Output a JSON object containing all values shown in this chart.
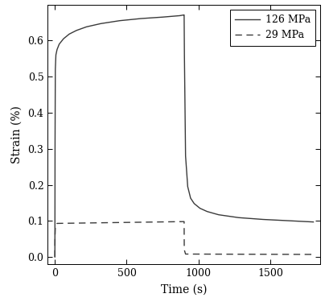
{
  "title": "",
  "xlabel": "Time (s)",
  "ylabel": "Strain (%)",
  "xlim": [
    -50,
    1850
  ],
  "ylim": [
    -0.02,
    0.7
  ],
  "xticks": [
    0,
    500,
    1000,
    1500
  ],
  "yticks": [
    0.0,
    0.1,
    0.2,
    0.3,
    0.4,
    0.5,
    0.6
  ],
  "legend_labels": [
    "126 MPa",
    "29 MPa"
  ],
  "line_color": "#4d4d4d",
  "background_color": "#ffffff",
  "line1": {
    "label": "126 MPa",
    "color": "#3a3a3a",
    "linestyle": "solid",
    "linewidth": 1.0,
    "t_points": [
      0,
      1,
      3,
      7,
      15,
      30,
      60,
      100,
      150,
      220,
      320,
      450,
      600,
      750,
      870,
      899,
      900,
      902,
      910,
      925,
      945,
      970,
      1010,
      1060,
      1140,
      1280,
      1450,
      1650,
      1800
    ],
    "y_points": [
      0.0,
      0.3,
      0.52,
      0.56,
      0.575,
      0.59,
      0.605,
      0.618,
      0.628,
      0.638,
      0.647,
      0.655,
      0.661,
      0.665,
      0.669,
      0.671,
      0.671,
      0.56,
      0.28,
      0.195,
      0.163,
      0.148,
      0.135,
      0.126,
      0.117,
      0.109,
      0.104,
      0.1,
      0.097
    ]
  },
  "line2": {
    "label": "29 MPa",
    "color": "#3a3a3a",
    "linestyle": "dashed",
    "linewidth": 1.0,
    "t_points": [
      0,
      1,
      3,
      7,
      15,
      899,
      900,
      901,
      910,
      1800
    ],
    "y_points": [
      0.0,
      0.055,
      0.082,
      0.09,
      0.093,
      0.098,
      0.098,
      0.02,
      0.008,
      0.007
    ]
  }
}
